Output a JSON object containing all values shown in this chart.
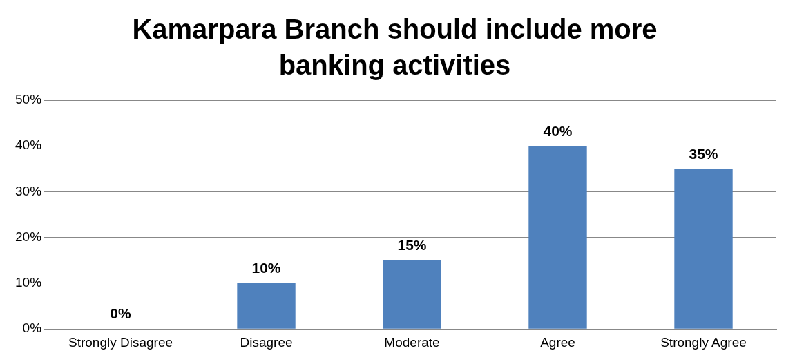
{
  "chart_data": {
    "type": "bar",
    "title": "Kamarpara Branch should include more banking activities",
    "categories": [
      "Strongly Disagree",
      "Disagree",
      "Moderate",
      "Agree",
      "Strongly Agree"
    ],
    "values": [
      0,
      10,
      15,
      40,
      35
    ],
    "value_labels": [
      "0%",
      "10%",
      "15%",
      "40%",
      "35%"
    ],
    "color": "#4f81bd",
    "ylim": [
      0,
      50
    ],
    "yticks": [
      {
        "value": 0,
        "label": "0%"
      },
      {
        "value": 10,
        "label": "10%"
      },
      {
        "value": 20,
        "label": "20%"
      },
      {
        "value": 30,
        "label": "30%"
      },
      {
        "value": 40,
        "label": "40%"
      },
      {
        "value": 50,
        "label": "50%"
      }
    ],
    "grid": "y",
    "legend": false
  }
}
